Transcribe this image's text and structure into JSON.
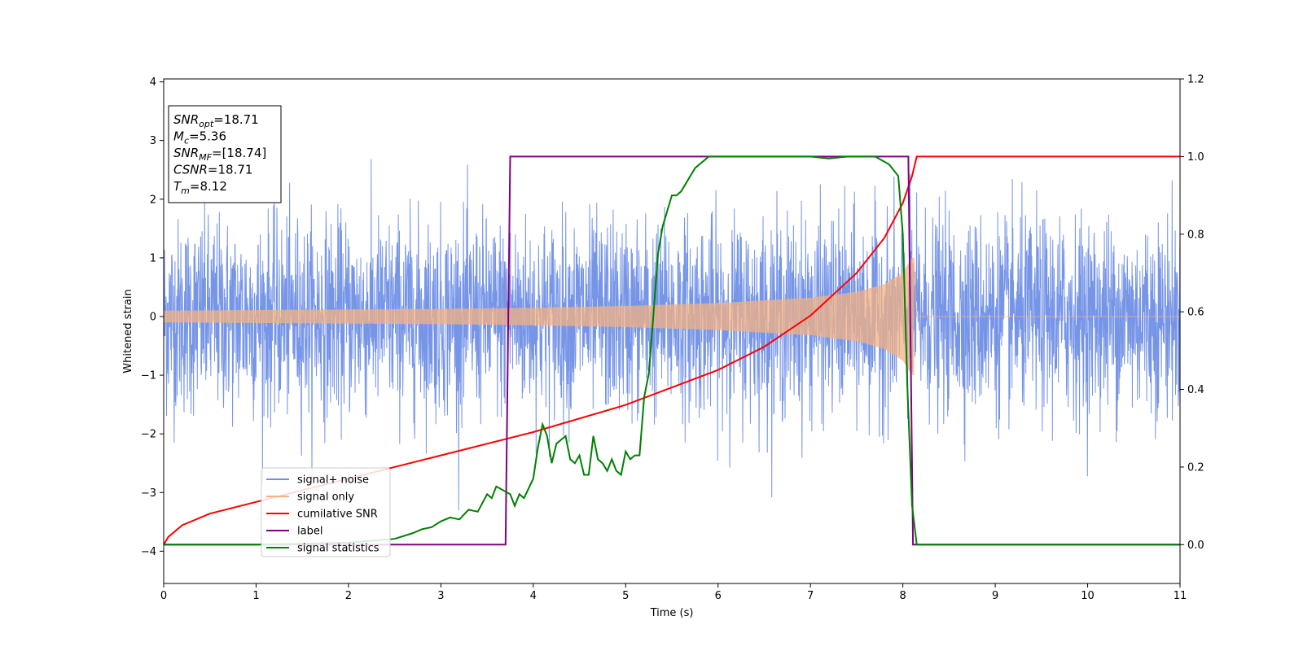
{
  "chart_data": {
    "type": "line",
    "title": "",
    "xlabel": "Time (s)",
    "ylabel": "Whitened strain",
    "xlim": [
      0,
      11
    ],
    "ylim_left": [
      -4.55,
      4.05
    ],
    "ylim_right": [
      -0.1,
      1.2
    ],
    "xticks": [
      0,
      1,
      2,
      3,
      4,
      5,
      6,
      7,
      8,
      9,
      10,
      11
    ],
    "xtick_labels": [
      "0",
      "1",
      "2",
      "3",
      "4",
      "5",
      "6",
      "7",
      "8",
      "9",
      "10",
      "11"
    ],
    "yticks_left": [
      4,
      3,
      2,
      1,
      0,
      -1,
      -2,
      -3,
      -4
    ],
    "ytick_labels_left": [
      "4",
      "3",
      "2",
      "1",
      "0",
      "−1",
      "−2",
      "−3",
      "−4"
    ],
    "yticks_right": [
      1.2,
      1.0,
      0.8,
      0.6,
      0.4,
      0.2,
      0.0
    ],
    "ytick_labels_right": [
      "1.2",
      "1.0",
      "0.8",
      "0.6",
      "0.4",
      "0.2",
      "0.0"
    ],
    "grid": false,
    "legend_position": "lower-left",
    "colors": {
      "signal_noise": "#6f8fe6",
      "signal_only": "#f4b183",
      "cumulative_snr": "#ff0000",
      "label": "#800080",
      "signal_statistics": "#008000"
    },
    "series": [
      {
        "name": "signal+ noise",
        "axis": "left",
        "kind": "noisy waveform",
        "envelope_typical": [
          -1.5,
          1.6
        ],
        "envelope_extreme": [
          -4.1,
          3.6
        ]
      },
      {
        "name": "signal only",
        "axis": "left",
        "kind": "chirp",
        "start": 0,
        "merger": 8.12,
        "amplitude_x": [
          0,
          1,
          2,
          3,
          4,
          5,
          6,
          7,
          7.5,
          7.8,
          8.0,
          8.1
        ],
        "amplitude_y": [
          0.1,
          0.11,
          0.12,
          0.13,
          0.15,
          0.18,
          0.23,
          0.32,
          0.42,
          0.55,
          0.75,
          1.0
        ]
      },
      {
        "name": "cumilative SNR",
        "axis": "right",
        "x": [
          0,
          0.05,
          0.2,
          0.5,
          1,
          2,
          3,
          4,
          5,
          6,
          6.5,
          7,
          7.5,
          7.8,
          8.0,
          8.1,
          8.15,
          11
        ],
        "y": [
          0.0,
          0.02,
          0.05,
          0.08,
          0.11,
          0.17,
          0.23,
          0.29,
          0.36,
          0.45,
          0.51,
          0.59,
          0.7,
          0.79,
          0.88,
          0.95,
          1.0,
          1.0
        ]
      },
      {
        "name": "label",
        "axis": "right",
        "x": [
          0,
          3.7,
          3.75,
          8.06,
          8.11,
          11
        ],
        "y": [
          0,
          0,
          1,
          1,
          0,
          0
        ]
      },
      {
        "name": "signal statistics",
        "axis": "right",
        "x": [
          0,
          1,
          2,
          2.5,
          2.7,
          2.8,
          2.9,
          3.0,
          3.1,
          3.2,
          3.3,
          3.4,
          3.5,
          3.55,
          3.6,
          3.75,
          3.8,
          3.85,
          3.9,
          4.0,
          4.05,
          4.1,
          4.15,
          4.2,
          4.25,
          4.3,
          4.35,
          4.4,
          4.45,
          4.5,
          4.55,
          4.6,
          4.65,
          4.7,
          4.75,
          4.8,
          4.85,
          4.9,
          4.95,
          5.0,
          5.05,
          5.1,
          5.15,
          5.2,
          5.25,
          5.3,
          5.35,
          5.4,
          5.5,
          5.55,
          5.6,
          5.65,
          5.7,
          5.75,
          5.8,
          5.85,
          5.9,
          6.0,
          6.1,
          6.3,
          7.0,
          7.2,
          7.4,
          7.7,
          7.85,
          7.95,
          8.0,
          8.05,
          8.1,
          8.15,
          11
        ],
        "y": [
          0.0,
          0.0,
          0.005,
          0.015,
          0.03,
          0.04,
          0.045,
          0.06,
          0.07,
          0.065,
          0.09,
          0.085,
          0.13,
          0.12,
          0.15,
          0.13,
          0.1,
          0.13,
          0.12,
          0.17,
          0.25,
          0.31,
          0.28,
          0.21,
          0.26,
          0.27,
          0.28,
          0.22,
          0.21,
          0.23,
          0.18,
          0.18,
          0.28,
          0.22,
          0.21,
          0.19,
          0.22,
          0.19,
          0.18,
          0.24,
          0.22,
          0.23,
          0.23,
          0.38,
          0.44,
          0.59,
          0.75,
          0.82,
          0.9,
          0.9,
          0.91,
          0.93,
          0.95,
          0.97,
          0.98,
          0.99,
          1.0,
          1.0,
          1.0,
          1.0,
          1.0,
          0.995,
          1.0,
          1.0,
          0.98,
          0.95,
          0.8,
          0.4,
          0.1,
          0.0,
          0.0
        ]
      }
    ],
    "annotation": {
      "lines": [
        {
          "name": "SNR",
          "sub": "opt",
          "value": "=18.71"
        },
        {
          "name": "M",
          "sub": "c",
          "value": "=5.36"
        },
        {
          "name": "SNR",
          "sub": "MF",
          "value": "=[18.74]"
        },
        {
          "name": "CSNR",
          "sub": "",
          "value": "=18.71"
        },
        {
          "name": "T",
          "sub": "m",
          "value": "=8.12"
        }
      ]
    }
  }
}
